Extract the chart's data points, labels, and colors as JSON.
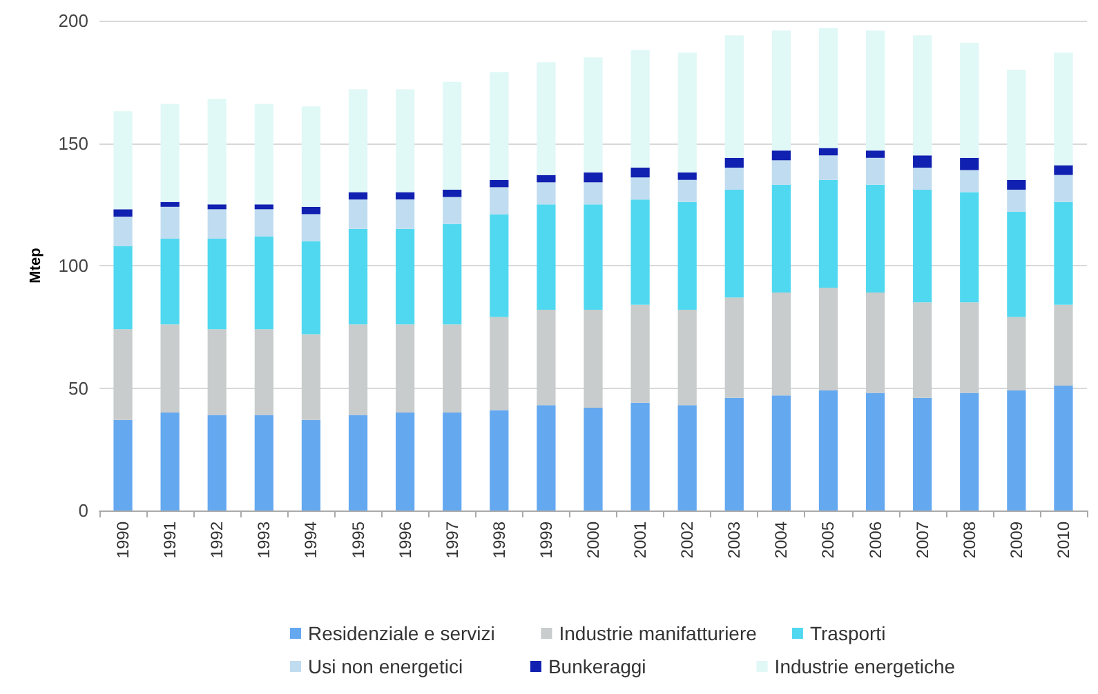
{
  "chart_data": {
    "type": "bar",
    "stacked": true,
    "ylabel": "Mtep",
    "categories": [
      "1990",
      "1991",
      "1992",
      "1993",
      "1994",
      "1995",
      "1996",
      "1997",
      "1998",
      "1999",
      "2000",
      "2001",
      "2002",
      "2003",
      "2004",
      "2005",
      "2006",
      "2007",
      "2008",
      "2009",
      "2010"
    ],
    "series": [
      {
        "name": "Residenziale e servizi",
        "color": "#64a8f0",
        "values": [
          37,
          40,
          39,
          39,
          37,
          39,
          40,
          40,
          41,
          43,
          42,
          44,
          43,
          46,
          47,
          49,
          48,
          46,
          48,
          49,
          51
        ]
      },
      {
        "name": "Industrie manifatturiere",
        "color": "#c8cccc",
        "values": [
          37,
          36,
          35,
          35,
          35,
          37,
          36,
          36,
          38,
          39,
          40,
          40,
          39,
          41,
          42,
          42,
          41,
          39,
          37,
          30,
          33
        ]
      },
      {
        "name": "Trasporti",
        "color": "#50d8f0",
        "values": [
          34,
          35,
          37,
          38,
          38,
          39,
          39,
          41,
          42,
          43,
          43,
          43,
          44,
          44,
          44,
          44,
          44,
          46,
          45,
          43,
          42
        ]
      },
      {
        "name": "Usi non energetici",
        "color": "#c0dcf0",
        "values": [
          12,
          13,
          12,
          11,
          11,
          12,
          12,
          11,
          11,
          9,
          9,
          9,
          9,
          9,
          10,
          10,
          11,
          9,
          9,
          9,
          11
        ]
      },
      {
        "name": "Bunkeraggi",
        "color": "#1020b0",
        "values": [
          3,
          2,
          2,
          2,
          3,
          3,
          3,
          3,
          3,
          3,
          4,
          4,
          3,
          4,
          4,
          3,
          3,
          5,
          5,
          4,
          4
        ]
      },
      {
        "name": "Industrie energetiche",
        "color": "#e0f8f6",
        "values": [
          40,
          40,
          43,
          41,
          41,
          42,
          42,
          44,
          44,
          46,
          47,
          48,
          49,
          50,
          49,
          49,
          49,
          49,
          47,
          45,
          46
        ]
      }
    ],
    "ylim": [
      0,
      200
    ],
    "yticks": [
      0,
      50,
      100,
      150,
      200
    ],
    "grid": "y",
    "legend": "bottom"
  }
}
